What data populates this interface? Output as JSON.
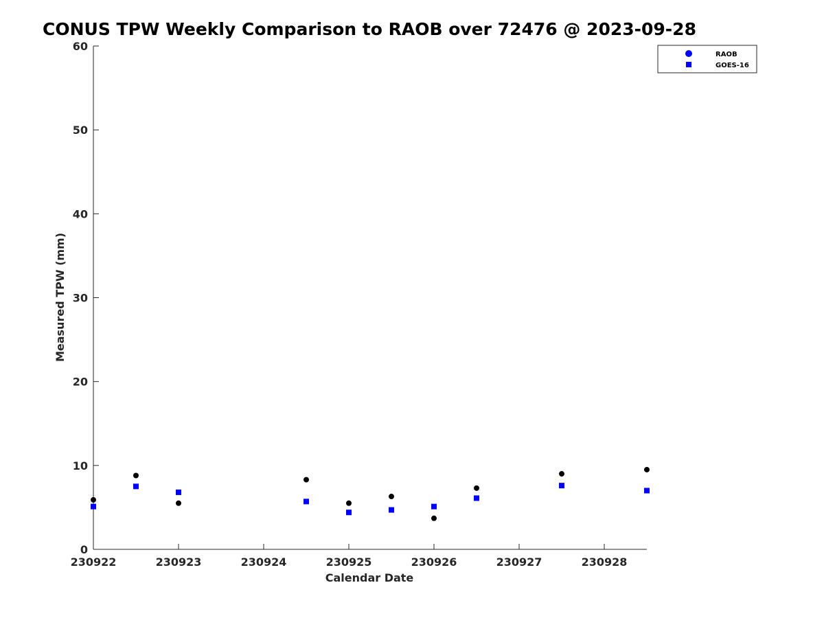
{
  "chart_data": {
    "type": "scatter",
    "title": "CONUS TPW Weekly Comparison to RAOB over 72476 @ 2023-09-28",
    "xlabel": "Calendar Date",
    "ylabel": "Measured TPW (mm)",
    "xlim": [
      230922,
      230928.5
    ],
    "ylim": [
      0,
      60
    ],
    "xticks": [
      {
        "value": 230922,
        "label": "230922"
      },
      {
        "value": 230923,
        "label": "230923"
      },
      {
        "value": 230924,
        "label": "230924"
      },
      {
        "value": 230925,
        "label": "230925"
      },
      {
        "value": 230926,
        "label": "230926"
      },
      {
        "value": 230927,
        "label": "230927"
      },
      {
        "value": 230928,
        "label": "230928"
      }
    ],
    "yticks": [
      {
        "value": 0,
        "label": "0"
      },
      {
        "value": 10,
        "label": "10"
      },
      {
        "value": 20,
        "label": "20"
      },
      {
        "value": 30,
        "label": "30"
      },
      {
        "value": 40,
        "label": "40"
      },
      {
        "value": 50,
        "label": "50"
      },
      {
        "value": 60,
        "label": "60"
      }
    ],
    "grid": false,
    "legend_position": "top-right",
    "series": [
      {
        "name": "RAOB",
        "marker": "circle",
        "color": "#000000",
        "legend_color": "#0000ff",
        "points": [
          {
            "x": 230922.0,
            "y": 5.9
          },
          {
            "x": 230922.5,
            "y": 8.8
          },
          {
            "x": 230923.0,
            "y": 5.5
          },
          {
            "x": 230924.5,
            "y": 8.3
          },
          {
            "x": 230925.0,
            "y": 5.5
          },
          {
            "x": 230925.5,
            "y": 6.3
          },
          {
            "x": 230926.0,
            "y": 3.7
          },
          {
            "x": 230926.5,
            "y": 7.3
          },
          {
            "x": 230927.5,
            "y": 9.0
          },
          {
            "x": 230928.5,
            "y": 9.5
          }
        ]
      },
      {
        "name": "GOES-16",
        "marker": "square",
        "color": "#0000ff",
        "legend_color": "#0000ff",
        "points": [
          {
            "x": 230922.0,
            "y": 5.1
          },
          {
            "x": 230922.5,
            "y": 7.5
          },
          {
            "x": 230923.0,
            "y": 6.8
          },
          {
            "x": 230924.5,
            "y": 5.7
          },
          {
            "x": 230925.0,
            "y": 4.4
          },
          {
            "x": 230925.5,
            "y": 4.7
          },
          {
            "x": 230926.0,
            "y": 5.1
          },
          {
            "x": 230926.5,
            "y": 6.1
          },
          {
            "x": 230927.5,
            "y": 7.6
          },
          {
            "x": 230928.5,
            "y": 7.0
          }
        ]
      }
    ]
  }
}
